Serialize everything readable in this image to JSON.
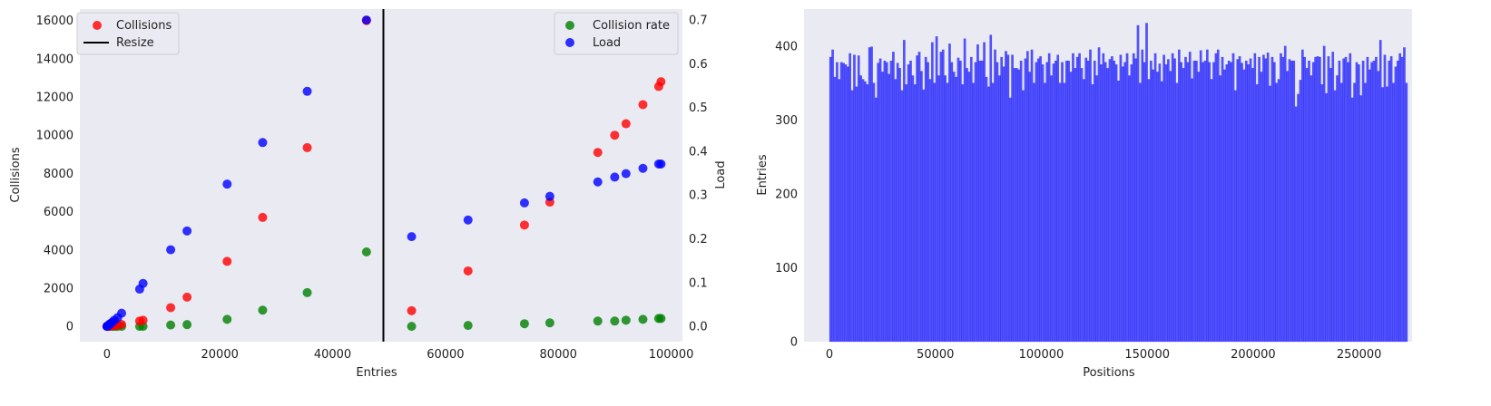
{
  "chart_data": [
    {
      "type": "scatter",
      "xlabel": "Entries",
      "ylabel": "Collisions",
      "y2label": "Load",
      "xlim": [
        -4800,
        102000
      ],
      "ylim": [
        -800,
        16600
      ],
      "y2lim": [
        -0.035,
        0.725
      ],
      "xticks": [
        0,
        20000,
        40000,
        60000,
        80000,
        100000
      ],
      "yticks": [
        0,
        2000,
        4000,
        6000,
        8000,
        10000,
        12000,
        14000,
        16000
      ],
      "y2ticks": [
        0.0,
        0.1,
        0.2,
        0.3,
        0.4,
        0.5,
        0.6,
        0.7
      ],
      "grid": false,
      "legend_left": [
        "Collisions",
        "Resize"
      ],
      "legend_right": [
        "Collision rate",
        "Load"
      ],
      "resize_line_x": 49000,
      "series": [
        {
          "name": "Collisions",
          "axis": "left",
          "color": "#ff0000",
          "points": [
            [
              0,
              0
            ],
            [
              100,
              2
            ],
            [
              250,
              5
            ],
            [
              400,
              10
            ],
            [
              600,
              20
            ],
            [
              900,
              30
            ],
            [
              1300,
              50
            ],
            [
              1900,
              70
            ],
            [
              2600,
              100
            ],
            [
              5800,
              280
            ],
            [
              6400,
              320
            ],
            [
              11300,
              980
            ],
            [
              14200,
              1530
            ],
            [
              21300,
              3400
            ],
            [
              27600,
              5700
            ],
            [
              35500,
              9350
            ],
            [
              46000,
              16000
            ],
            [
              54000,
              820
            ],
            [
              64000,
              2900
            ],
            [
              74000,
              5300
            ],
            [
              78500,
              6500
            ],
            [
              87000,
              9100
            ],
            [
              90000,
              10000
            ],
            [
              92000,
              10600
            ],
            [
              95000,
              11600
            ],
            [
              97800,
              12550
            ],
            [
              98200,
              12800
            ]
          ]
        },
        {
          "name": "Collision rate",
          "axis": "right",
          "color": "#008000",
          "points": [
            [
              0,
              0
            ],
            [
              100,
              0
            ],
            [
              250,
              0
            ],
            [
              400,
              0
            ],
            [
              600,
              0
            ],
            [
              900,
              0
            ],
            [
              1300,
              0
            ],
            [
              1900,
              0
            ],
            [
              2600,
              0
            ],
            [
              5800,
              0
            ],
            [
              6400,
              0
            ],
            [
              11300,
              0.003
            ],
            [
              14200,
              0.004
            ],
            [
              21300,
              0.016
            ],
            [
              27600,
              0.037
            ],
            [
              35500,
              0.077
            ],
            [
              46000,
              0.17
            ],
            [
              54000,
              0.0
            ],
            [
              64000,
              0.002
            ],
            [
              74000,
              0.006
            ],
            [
              78500,
              0.008
            ],
            [
              87000,
              0.012
            ],
            [
              90000,
              0.012
            ],
            [
              92000,
              0.014
            ],
            [
              95000,
              0.016
            ],
            [
              97800,
              0.018
            ],
            [
              98200,
              0.018
            ]
          ]
        },
        {
          "name": "Load",
          "axis": "right",
          "color": "#0000ff",
          "points": [
            [
              0,
              0.0
            ],
            [
              100,
              0.001
            ],
            [
              250,
              0.002
            ],
            [
              400,
              0.004
            ],
            [
              600,
              0.006
            ],
            [
              900,
              0.009
            ],
            [
              1300,
              0.014
            ],
            [
              1900,
              0.02
            ],
            [
              2600,
              0.03
            ],
            [
              5800,
              0.085
            ],
            [
              6400,
              0.098
            ],
            [
              11300,
              0.175
            ],
            [
              14200,
              0.218
            ],
            [
              21300,
              0.325
            ],
            [
              27600,
              0.42
            ],
            [
              35500,
              0.537
            ],
            [
              46000,
              0.7
            ],
            [
              54000,
              0.205
            ],
            [
              64000,
              0.243
            ],
            [
              74000,
              0.282
            ],
            [
              78500,
              0.297
            ],
            [
              87000,
              0.33
            ],
            [
              90000,
              0.341
            ],
            [
              92000,
              0.349
            ],
            [
              95000,
              0.361
            ],
            [
              97800,
              0.371
            ],
            [
              98200,
              0.371
            ]
          ]
        }
      ]
    },
    {
      "type": "bar",
      "xlabel": "Positions",
      "ylabel": "Entries",
      "xlim": [
        -12000,
        275000
      ],
      "ylim": [
        0,
        450
      ],
      "xticks": [
        0,
        50000,
        100000,
        150000,
        200000,
        250000
      ],
      "yticks": [
        0,
        100,
        200,
        300,
        400
      ],
      "grid": false,
      "color": "#0000ff",
      "bin_start": 0,
      "bin_width": 1022,
      "values": [
        385,
        395,
        358,
        378,
        355,
        378,
        377,
        375,
        372,
        390,
        340,
        388,
        345,
        387,
        360,
        355,
        352,
        348,
        398,
        399,
        350,
        330,
        377,
        383,
        365,
        380,
        378,
        362,
        380,
        392,
        355,
        377,
        370,
        340,
        408,
        348,
        375,
        380,
        360,
        348,
        387,
        392,
        366,
        341,
        385,
        378,
        355,
        405,
        350,
        413,
        360,
        392,
        395,
        360,
        350,
        403,
        378,
        365,
        358,
        384,
        380,
        348,
        410,
        370,
        365,
        385,
        350,
        378,
        402,
        380,
        380,
        405,
        358,
        345,
        415,
        350,
        395,
        378,
        360,
        385,
        372,
        393,
        388,
        330,
        388,
        370,
        370,
        368,
        380,
        340,
        383,
        393,
        365,
        395,
        350,
        378,
        383,
        386,
        375,
        350,
        378,
        390,
        360,
        376,
        380,
        388,
        350,
        378,
        350,
        380,
        380,
        365,
        390,
        370,
        385,
        390,
        370,
        355,
        384,
        380,
        395,
        348,
        380,
        360,
        398,
        375,
        390,
        378,
        370,
        382,
        386,
        380,
        375,
        353,
        388,
        372,
        378,
        390,
        360,
        375,
        390,
        383,
        428,
        350,
        395,
        378,
        431,
        355,
        380,
        368,
        390,
        365,
        376,
        352,
        388,
        375,
        382,
        366,
        390,
        383,
        350,
        395,
        378,
        370,
        385,
        378,
        392,
        356,
        380,
        380,
        365,
        394,
        378,
        380,
        395,
        378,
        355,
        378,
        390,
        395,
        360,
        385,
        368,
        375,
        380,
        378,
        390,
        340,
        382,
        386,
        377,
        368,
        380,
        375,
        383,
        370,
        390,
        348,
        385,
        365,
        388,
        383,
        391,
        346,
        385,
        378,
        350,
        355,
        390,
        385,
        400,
        366,
        382,
        380,
        380,
        318,
        335,
        354,
        395,
        385,
        370,
        380,
        360,
        378,
        385,
        386,
        385,
        348,
        400,
        336,
        386,
        370,
        392,
        340,
        360,
        380,
        350,
        383,
        385,
        378,
        390,
        330,
        350,
        378,
        375,
        333,
        380,
        350,
        385,
        368,
        378,
        380,
        385,
        366,
        408,
        344,
        388,
        345,
        380,
        386,
        350,
        372,
        380,
        390,
        385,
        398,
        350
      ]
    }
  ]
}
